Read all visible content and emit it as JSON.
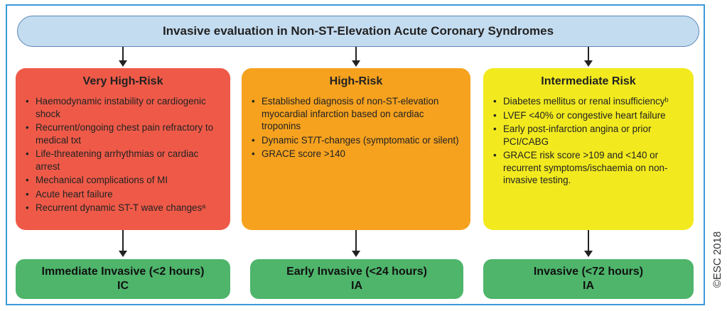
{
  "title": "Invasive evaluation in Non-ST-Elevation Acute Coronary Syndromes",
  "risk_groups": [
    {
      "heading": "Very High-Risk",
      "color": "#ef5a48",
      "items": [
        "Haemodynamic instability or cardiogenic shock",
        "Recurrent/ongoing chest pain refractory to medical txt",
        "Life-threatening arrhythmias or cardiac arrest",
        "Mechanical complications of MI",
        "Acute heart failure",
        "Recurrent dynamic ST-T wave changesᵃ"
      ],
      "outcome_line1": "Immediate Invasive (<2 hours)",
      "outcome_line2": "IC"
    },
    {
      "heading": "High-Risk",
      "color": "#f6a21f",
      "items": [
        "Established diagnosis of non-ST-elevation myocardial infarction based on cardiac troponins",
        "Dynamic ST/T-changes (symptomatic or silent)",
        "GRACE score >140"
      ],
      "outcome_line1": "Early Invasive (<24 hours)",
      "outcome_line2": "IA"
    },
    {
      "heading": "Intermediate Risk",
      "color": "#f2ea1e",
      "items": [
        "Diabetes mellitus or renal insufficiencyᵇ",
        "LVEF <40% or congestive heart failure",
        "Early post-infarction angina or prior PCI/CABG",
        "GRACE risk score >109 and <140 or recurrent symptoms/ischaemia on non-invasive testing."
      ],
      "outcome_line1": "Invasive (<72 hours)",
      "outcome_line2": "IA"
    }
  ],
  "outcome_color": "#4eb56b",
  "copyright": "©ESC 2018"
}
